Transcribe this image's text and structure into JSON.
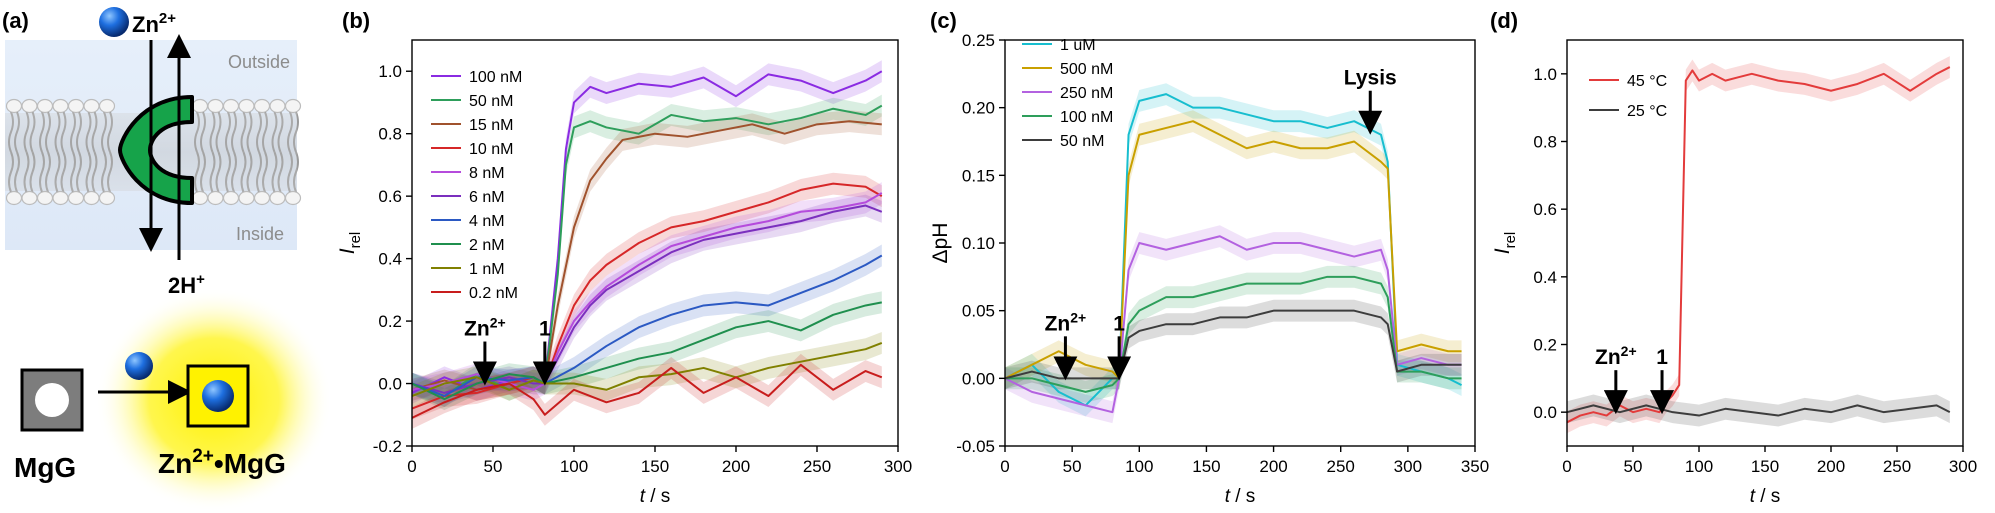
{
  "panel_a": {
    "label": "(a)",
    "ion_label": "Zn",
    "ion_charge": "2+",
    "outside_label": "Outside",
    "inside_label": "Inside",
    "proton_label": "2H",
    "proton_charge": "+",
    "probe_left_label": "MgG",
    "probe_right_label": "Zn",
    "probe_right_charge": "2+",
    "probe_right_suffix": "•MgG"
  },
  "chart_data": [
    {
      "type": "line",
      "panel": "(b)",
      "xlabel": "t",
      "xlabel_suffix": " / s",
      "ylabel": "I",
      "ylabel_sub": "rel",
      "xlim": [
        0,
        300
      ],
      "ylim": [
        -0.2,
        1.1
      ],
      "xticks": [
        0,
        50,
        100,
        150,
        200,
        250,
        300
      ],
      "yticks": [
        -0.2,
        0.0,
        0.2,
        0.4,
        0.6,
        0.8,
        1.0
      ],
      "legend_position": "top-left",
      "annotations": [
        {
          "text": "Zn",
          "sup": "2+",
          "x": 45
        },
        {
          "text": "1",
          "sup": "",
          "x": 82
        }
      ],
      "series": [
        {
          "name": "100 nM",
          "color": "#8a2be2",
          "x": [
            0,
            20,
            40,
            60,
            75,
            82,
            90,
            95,
            100,
            110,
            120,
            140,
            160,
            180,
            200,
            220,
            240,
            260,
            280,
            290
          ],
          "y": [
            -0.03,
            0.02,
            -0.02,
            0.01,
            0.02,
            0.0,
            0.4,
            0.75,
            0.9,
            0.95,
            0.93,
            0.96,
            0.95,
            0.98,
            0.92,
            0.99,
            0.97,
            0.93,
            0.97,
            1.0
          ]
        },
        {
          "name": "50 nM",
          "color": "#2e9e5b",
          "x": [
            0,
            20,
            40,
            60,
            75,
            82,
            90,
            95,
            100,
            110,
            120,
            140,
            160,
            180,
            200,
            220,
            240,
            260,
            280,
            290
          ],
          "y": [
            0.0,
            -0.04,
            0.03,
            -0.02,
            0.01,
            0.0,
            0.35,
            0.7,
            0.82,
            0.84,
            0.82,
            0.8,
            0.86,
            0.84,
            0.85,
            0.83,
            0.85,
            0.88,
            0.86,
            0.89
          ]
        },
        {
          "name": "15 nM",
          "color": "#a0522d",
          "x": [
            0,
            20,
            40,
            60,
            75,
            82,
            90,
            100,
            110,
            120,
            130,
            150,
            170,
            190,
            210,
            230,
            250,
            270,
            290
          ],
          "y": [
            -0.02,
            0.01,
            -0.02,
            0.0,
            0.02,
            0.0,
            0.25,
            0.5,
            0.65,
            0.72,
            0.78,
            0.8,
            0.79,
            0.81,
            0.83,
            0.8,
            0.83,
            0.84,
            0.83
          ]
        },
        {
          "name": "10 nM",
          "color": "#d62728",
          "x": [
            0,
            20,
            40,
            60,
            75,
            82,
            90,
            100,
            110,
            120,
            140,
            160,
            180,
            200,
            220,
            240,
            260,
            280,
            290
          ],
          "y": [
            -0.08,
            -0.04,
            -0.03,
            0.0,
            0.02,
            0.0,
            0.12,
            0.25,
            0.33,
            0.38,
            0.45,
            0.5,
            0.52,
            0.55,
            0.58,
            0.62,
            0.64,
            0.63,
            0.6
          ]
        },
        {
          "name": "8 nM",
          "color": "#b54bdc",
          "x": [
            0,
            20,
            40,
            60,
            75,
            82,
            90,
            100,
            110,
            120,
            140,
            160,
            180,
            200,
            220,
            240,
            260,
            280,
            290
          ],
          "y": [
            -0.02,
            0.0,
            0.03,
            0.0,
            -0.02,
            0.0,
            0.1,
            0.2,
            0.26,
            0.31,
            0.38,
            0.44,
            0.47,
            0.5,
            0.52,
            0.55,
            0.56,
            0.58,
            0.61
          ]
        },
        {
          "name": "6 nM",
          "color": "#7b2fbe",
          "x": [
            0,
            20,
            40,
            60,
            75,
            82,
            90,
            100,
            110,
            120,
            140,
            160,
            180,
            200,
            220,
            240,
            260,
            280,
            290
          ],
          "y": [
            0.0,
            -0.03,
            0.0,
            0.02,
            0.0,
            0.0,
            0.08,
            0.18,
            0.25,
            0.3,
            0.36,
            0.42,
            0.46,
            0.48,
            0.5,
            0.52,
            0.55,
            0.57,
            0.55
          ]
        },
        {
          "name": "4 nM",
          "color": "#2b59c3",
          "x": [
            0,
            20,
            40,
            60,
            75,
            82,
            100,
            120,
            140,
            160,
            180,
            200,
            220,
            240,
            260,
            280,
            290
          ],
          "y": [
            0.0,
            -0.04,
            0.02,
            0.01,
            0.02,
            0.0,
            0.05,
            0.12,
            0.18,
            0.22,
            0.25,
            0.26,
            0.25,
            0.29,
            0.33,
            0.38,
            0.41
          ]
        },
        {
          "name": "2 nM",
          "color": "#1f8f4e",
          "x": [
            0,
            20,
            40,
            60,
            75,
            82,
            100,
            120,
            140,
            160,
            180,
            200,
            220,
            240,
            260,
            280,
            290
          ],
          "y": [
            0.0,
            -0.05,
            0.0,
            0.03,
            0.02,
            0.0,
            0.02,
            0.05,
            0.08,
            0.1,
            0.14,
            0.18,
            0.2,
            0.17,
            0.22,
            0.25,
            0.26
          ]
        },
        {
          "name": "1 nM",
          "color": "#808000",
          "x": [
            0,
            20,
            40,
            60,
            75,
            82,
            100,
            120,
            140,
            160,
            180,
            200,
            220,
            240,
            260,
            280,
            290
          ],
          "y": [
            -0.04,
            0.0,
            0.02,
            -0.02,
            0.01,
            0.0,
            0.0,
            -0.02,
            0.02,
            0.03,
            0.05,
            0.02,
            0.05,
            0.07,
            0.09,
            0.11,
            0.13
          ]
        },
        {
          "name": "0.2 nM",
          "color": "#c81d1d",
          "x": [
            0,
            20,
            40,
            60,
            75,
            82,
            100,
            120,
            140,
            160,
            180,
            200,
            220,
            240,
            260,
            280,
            290
          ],
          "y": [
            -0.11,
            -0.06,
            -0.02,
            0.0,
            -0.05,
            -0.1,
            -0.02,
            -0.06,
            -0.03,
            0.05,
            -0.03,
            0.02,
            -0.04,
            0.06,
            -0.02,
            0.04,
            0.02
          ]
        }
      ]
    },
    {
      "type": "line",
      "panel": "(c)",
      "xlabel": "t",
      "xlabel_suffix": " / s",
      "ylabel": "ΔpH",
      "ylabel_sub": "",
      "xlim": [
        0,
        350
      ],
      "ylim": [
        -0.05,
        0.25
      ],
      "xticks": [
        0,
        50,
        100,
        150,
        200,
        250,
        300,
        350
      ],
      "yticks": [
        -0.05,
        0.0,
        0.05,
        0.1,
        0.15,
        0.2,
        0.25
      ],
      "legend_position": "top-left",
      "annotations": [
        {
          "text": "Zn",
          "sup": "2+",
          "x": 45
        },
        {
          "text": "1",
          "sup": "",
          "x": 85
        },
        {
          "text": "Lysis",
          "sup": "",
          "x": 272
        }
      ],
      "series": [
        {
          "name": "1 uM",
          "color": "#17becf",
          "x": [
            0,
            20,
            40,
            60,
            80,
            85,
            92,
            100,
            120,
            140,
            160,
            180,
            200,
            220,
            240,
            260,
            280,
            285,
            292,
            310,
            330,
            340
          ],
          "y": [
            0.0,
            0.01,
            -0.01,
            -0.02,
            0.0,
            0.0,
            0.18,
            0.205,
            0.21,
            0.2,
            0.2,
            0.195,
            0.19,
            0.19,
            0.185,
            0.19,
            0.18,
            0.16,
            0.01,
            0.005,
            0.0,
            -0.005
          ]
        },
        {
          "name": "500 nM",
          "color": "#c9a000",
          "x": [
            0,
            20,
            40,
            60,
            80,
            85,
            92,
            100,
            120,
            140,
            160,
            180,
            200,
            220,
            240,
            260,
            280,
            285,
            292,
            310,
            330,
            340
          ],
          "y": [
            0.0,
            0.01,
            0.02,
            0.01,
            0.005,
            0.0,
            0.15,
            0.18,
            0.185,
            0.19,
            0.18,
            0.17,
            0.175,
            0.17,
            0.17,
            0.175,
            0.16,
            0.155,
            0.02,
            0.025,
            0.02,
            0.02
          ]
        },
        {
          "name": "250 nM",
          "color": "#b362e0",
          "x": [
            0,
            20,
            40,
            60,
            80,
            85,
            92,
            100,
            120,
            140,
            160,
            180,
            200,
            220,
            240,
            260,
            280,
            285,
            292,
            310,
            330,
            340
          ],
          "y": [
            0.0,
            -0.01,
            -0.015,
            -0.02,
            -0.025,
            0.0,
            0.08,
            0.1,
            0.095,
            0.1,
            0.105,
            0.095,
            0.1,
            0.1,
            0.095,
            0.09,
            0.095,
            0.08,
            0.01,
            0.015,
            0.01,
            0.01
          ]
        },
        {
          "name": "100 nM",
          "color": "#2e9e5b",
          "x": [
            0,
            20,
            40,
            60,
            80,
            85,
            92,
            100,
            120,
            140,
            160,
            180,
            200,
            220,
            240,
            260,
            280,
            285,
            292,
            310,
            330,
            340
          ],
          "y": [
            0.0,
            0.0,
            -0.005,
            -0.01,
            -0.005,
            0.0,
            0.04,
            0.05,
            0.06,
            0.06,
            0.065,
            0.07,
            0.07,
            0.07,
            0.075,
            0.075,
            0.07,
            0.06,
            0.005,
            0.005,
            0.0,
            0.0
          ]
        },
        {
          "name": "50 nM",
          "color": "#3d3d3d",
          "x": [
            0,
            20,
            40,
            60,
            80,
            85,
            92,
            100,
            120,
            140,
            160,
            180,
            200,
            220,
            240,
            260,
            280,
            285,
            292,
            310,
            330,
            340
          ],
          "y": [
            0.0,
            0.005,
            0.0,
            0.0,
            0.0,
            0.0,
            0.03,
            0.035,
            0.04,
            0.04,
            0.045,
            0.045,
            0.05,
            0.05,
            0.05,
            0.05,
            0.045,
            0.04,
            0.005,
            0.01,
            0.01,
            0.01
          ]
        }
      ]
    },
    {
      "type": "line",
      "panel": "(d)",
      "xlabel": "t",
      "xlabel_suffix": " / s",
      "ylabel": "I",
      "ylabel_sub": "rel",
      "xlim": [
        0,
        300
      ],
      "ylim": [
        -0.1,
        1.1
      ],
      "xticks": [
        0,
        50,
        100,
        150,
        200,
        250,
        300
      ],
      "yticks": [
        0.0,
        0.2,
        0.4,
        0.6,
        0.8,
        1.0
      ],
      "legend_position": "top-left",
      "annotations": [
        {
          "text": "Zn",
          "sup": "2+",
          "x": 37
        },
        {
          "text": "1",
          "sup": "",
          "x": 72
        }
      ],
      "series": [
        {
          "name": "45 °C",
          "color": "#e33b3b",
          "x": [
            0,
            10,
            20,
            30,
            40,
            50,
            60,
            70,
            75,
            80,
            85,
            90,
            95,
            100,
            110,
            120,
            130,
            140,
            160,
            180,
            200,
            220,
            240,
            260,
            280,
            290
          ],
          "y": [
            -0.03,
            -0.01,
            0.0,
            -0.01,
            0.02,
            0.0,
            0.01,
            0.0,
            0.03,
            0.05,
            0.08,
            0.98,
            1.01,
            0.98,
            1.0,
            0.98,
            0.99,
            1.0,
            0.98,
            0.97,
            0.95,
            0.97,
            1.0,
            0.95,
            1.0,
            1.02
          ]
        },
        {
          "name": "25 °C",
          "color": "#3d3d3d",
          "x": [
            0,
            20,
            40,
            60,
            80,
            100,
            120,
            140,
            160,
            180,
            200,
            220,
            240,
            260,
            280,
            290
          ],
          "y": [
            0.0,
            0.02,
            0.0,
            0.02,
            0.0,
            -0.01,
            0.01,
            0.0,
            -0.01,
            0.01,
            0.0,
            0.02,
            0.0,
            0.01,
            0.02,
            0.0
          ]
        }
      ]
    }
  ]
}
